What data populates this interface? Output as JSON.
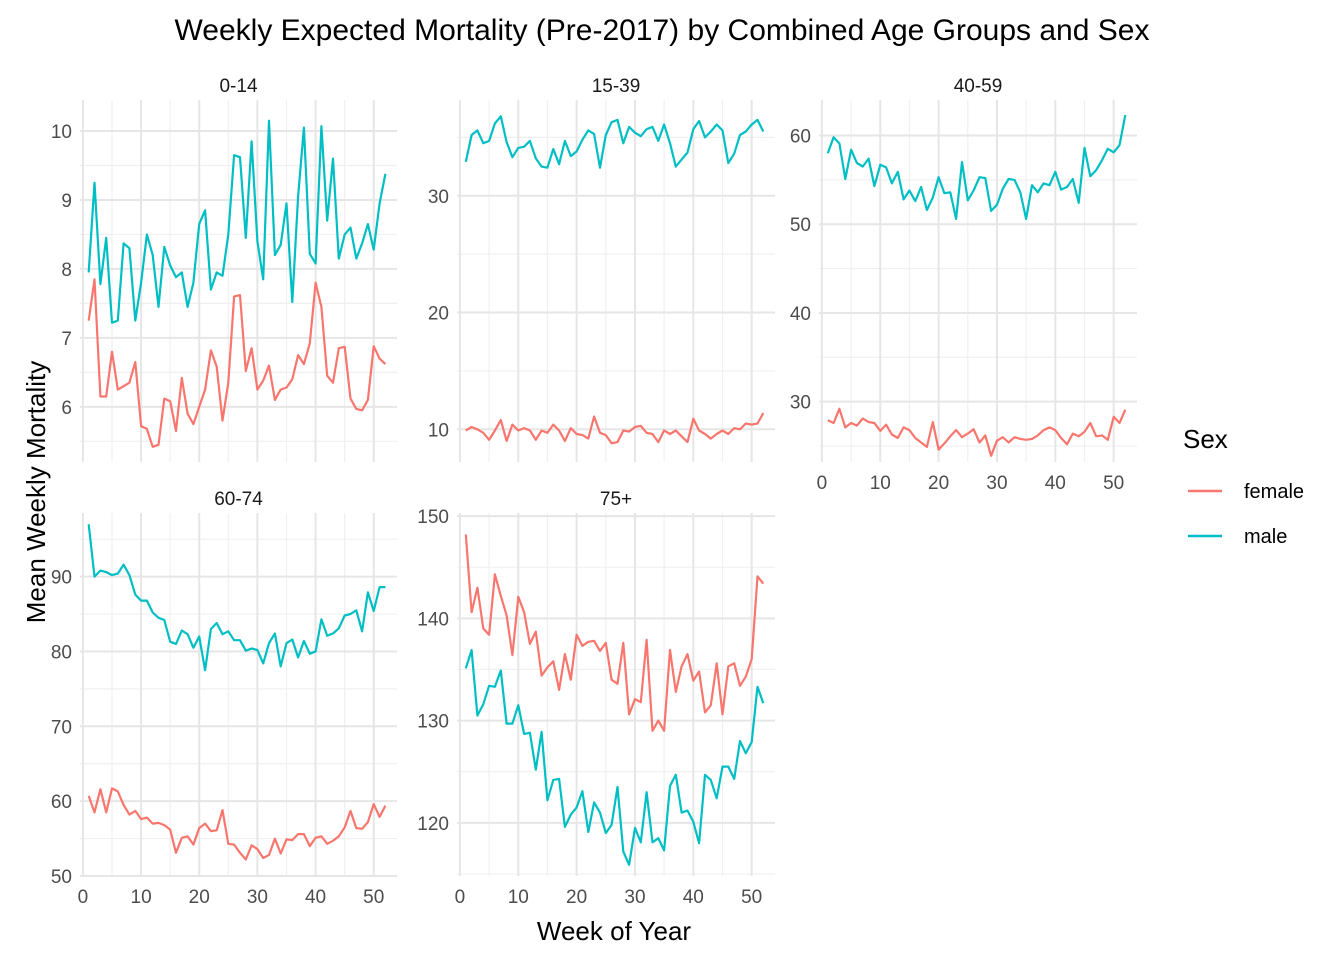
{
  "chart_data": {
    "type": "line",
    "title": "Weekly Expected Mortality (Pre-2017) by Combined Age Groups and Sex",
    "xlabel": "Week of Year",
    "ylabel": "Mean Weekly Mortality",
    "legend": {
      "title": "Sex",
      "position": "right",
      "entries": [
        {
          "name": "female",
          "color": "#F8766D"
        },
        {
          "name": "male",
          "color": "#00BFC4"
        }
      ]
    },
    "x_ticks": [
      0,
      10,
      20,
      30,
      40,
      50
    ],
    "x_ticks_labels": [
      "0",
      "10",
      "20",
      "30",
      "40",
      "50"
    ],
    "xlim": [
      -0.5,
      54
    ],
    "grid": true,
    "panels": [
      {
        "label": "0-14",
        "ylim": [
          5.2,
          10.45
        ],
        "y_ticks": [
          6,
          7,
          8,
          9,
          10
        ],
        "y_ticks_labels": [
          "6",
          "7",
          "8",
          "9",
          "10"
        ],
        "series": [
          {
            "name": "female",
            "values": [
              7.25,
              7.85,
              6.15,
              6.15,
              6.8,
              6.25,
              6.3,
              6.35,
              6.65,
              5.72,
              5.68,
              5.42,
              5.45,
              6.12,
              6.08,
              5.65,
              6.42,
              5.9,
              5.75,
              6.0,
              6.25,
              6.82,
              6.58,
              5.8,
              6.35,
              7.6,
              7.62,
              6.52,
              6.85,
              6.25,
              6.38,
              6.6,
              6.1,
              6.25,
              6.28,
              6.4,
              6.75,
              6.62,
              6.92,
              7.8,
              7.45,
              6.45,
              6.35,
              6.85,
              6.87,
              6.12,
              5.97,
              5.95,
              6.1,
              6.88,
              6.7,
              6.62
            ]
          },
          {
            "name": "male",
            "values": [
              7.95,
              9.25,
              7.78,
              8.45,
              7.22,
              7.25,
              8.37,
              8.3,
              7.25,
              7.8,
              8.5,
              8.2,
              7.45,
              8.32,
              8.05,
              7.88,
              7.95,
              7.45,
              7.8,
              8.65,
              8.85,
              7.7,
              7.95,
              7.9,
              8.5,
              9.65,
              9.62,
              8.45,
              9.85,
              8.4,
              7.85,
              10.15,
              8.2,
              8.35,
              8.95,
              7.52,
              9.05,
              10.05,
              8.22,
              8.08,
              10.07,
              8.7,
              9.6,
              8.15,
              8.5,
              8.6,
              8.15,
              8.37,
              8.65,
              8.28,
              8.95,
              9.38
            ]
          }
        ]
      },
      {
        "label": "15-39",
        "ylim": [
          7.2,
          38.2
        ],
        "y_ticks": [
          10,
          20,
          30
        ],
        "y_ticks_labels": [
          "10",
          "20",
          "30"
        ],
        "series": [
          {
            "name": "female",
            "values": [
              9.9,
              10.2,
              10.0,
              9.7,
              9.1,
              9.9,
              10.8,
              9.0,
              10.4,
              9.9,
              10.1,
              9.9,
              9.1,
              9.9,
              9.7,
              10.4,
              9.9,
              9.0,
              10.1,
              9.6,
              9.5,
              9.2,
              11.1,
              9.7,
              9.5,
              8.8,
              8.9,
              9.9,
              9.8,
              10.2,
              10.3,
              9.7,
              9.6,
              8.9,
              9.9,
              9.6,
              9.9,
              9.4,
              8.9,
              10.9,
              9.9,
              9.6,
              9.2,
              9.6,
              9.9,
              9.6,
              10.1,
              10.0,
              10.5,
              10.4,
              10.5,
              11.4
            ]
          },
          {
            "name": "male",
            "values": [
              32.9,
              35.2,
              35.6,
              34.5,
              34.7,
              36.2,
              36.8,
              34.6,
              33.3,
              34.1,
              34.2,
              34.7,
              33.2,
              32.5,
              32.4,
              34.0,
              32.7,
              34.7,
              33.4,
              33.8,
              34.8,
              35.6,
              35.3,
              32.4,
              35.2,
              36.3,
              36.5,
              34.5,
              35.9,
              35.4,
              35.1,
              35.7,
              35.9,
              34.7,
              36.1,
              34.5,
              32.5,
              33.1,
              33.7,
              35.7,
              36.4,
              35.0,
              35.5,
              36.1,
              35.6,
              32.8,
              33.6,
              35.2,
              35.5,
              36.1,
              36.5,
              35.5
            ]
          }
        ]
      },
      {
        "label": "40-59",
        "ylim": [
          23.2,
          64.0
        ],
        "y_ticks": [
          30,
          40,
          50,
          60
        ],
        "y_ticks_labels": [
          "30",
          "40",
          "50",
          "60"
        ],
        "series": [
          {
            "name": "female",
            "values": [
              27.9,
              27.6,
              29.2,
              27.1,
              27.6,
              27.3,
              28.1,
              27.7,
              27.6,
              26.7,
              27.4,
              26.3,
              25.9,
              27.1,
              26.8,
              25.9,
              25.4,
              24.9,
              27.7,
              24.6,
              25.3,
              26.1,
              26.8,
              26.0,
              26.4,
              26.9,
              25.4,
              26.2,
              23.9,
              25.6,
              26.0,
              25.4,
              26.0,
              25.8,
              25.7,
              25.8,
              26.2,
              26.8,
              27.1,
              26.8,
              25.9,
              25.2,
              26.4,
              26.1,
              26.6,
              27.6,
              26.1,
              26.2,
              25.7,
              28.3,
              27.6,
              29.1
            ]
          },
          {
            "name": "male",
            "values": [
              58.0,
              59.8,
              59.1,
              55.1,
              58.4,
              56.9,
              56.5,
              57.4,
              54.3,
              56.7,
              56.4,
              54.6,
              55.9,
              52.8,
              53.8,
              52.6,
              54.2,
              51.6,
              53.0,
              55.3,
              53.5,
              53.6,
              50.6,
              57.0,
              52.7,
              53.8,
              55.3,
              55.2,
              51.5,
              52.2,
              54.0,
              55.1,
              55.0,
              53.6,
              50.6,
              54.4,
              53.6,
              54.6,
              54.4,
              55.9,
              53.9,
              54.2,
              55.1,
              52.4,
              58.6,
              55.4,
              56.1,
              57.2,
              58.5,
              58.1,
              58.9,
              62.3
            ]
          }
        ]
      },
      {
        "label": "60-74",
        "ylim": [
          50.0,
          98.5
        ],
        "y_ticks": [
          50,
          60,
          70,
          80,
          90
        ],
        "y_ticks_labels": [
          "50",
          "60",
          "70",
          "80",
          "90"
        ],
        "series": [
          {
            "name": "female",
            "values": [
              60.7,
              58.5,
              61.6,
              58.5,
              61.7,
              61.3,
              59.5,
              58.2,
              58.7,
              57.6,
              57.8,
              57.0,
              57.1,
              56.8,
              56.2,
              53.1,
              55.1,
              55.3,
              54.2,
              56.4,
              57.0,
              56.0,
              56.1,
              58.8,
              54.3,
              54.2,
              53.1,
              52.2,
              54.1,
              53.6,
              52.4,
              52.8,
              55.0,
              53.0,
              54.9,
              54.8,
              55.6,
              55.6,
              54.0,
              55.1,
              55.3,
              54.3,
              54.7,
              55.3,
              56.5,
              58.7,
              56.4,
              56.3,
              57.2,
              59.6,
              57.9,
              59.4
            ]
          },
          {
            "name": "male",
            "values": [
              97.0,
              90.0,
              90.8,
              90.6,
              90.2,
              90.4,
              91.6,
              90.2,
              87.6,
              86.8,
              86.8,
              85.2,
              84.5,
              84.2,
              81.3,
              81.0,
              82.8,
              82.3,
              80.5,
              82.0,
              77.5,
              83.0,
              83.8,
              82.3,
              82.7,
              81.5,
              81.5,
              80.1,
              80.4,
              80.2,
              78.4,
              81.1,
              82.4,
              78.0,
              81.1,
              81.6,
              79.2,
              81.4,
              79.7,
              80.0,
              84.3,
              82.1,
              82.4,
              83.1,
              84.8,
              85.0,
              85.5,
              82.7,
              87.9,
              85.4,
              88.6,
              88.6
            ]
          }
        ]
      },
      {
        "label": "75+",
        "ylim": [
          114.8,
          150.3
        ],
        "y_ticks": [
          120,
          130,
          140,
          150
        ],
        "y_ticks_labels": [
          "120",
          "130",
          "140",
          "150"
        ],
        "series": [
          {
            "name": "female",
            "values": [
              148.2,
              140.6,
              143.0,
              139.0,
              138.4,
              144.3,
              142.2,
              140.3,
              136.4,
              142.1,
              140.6,
              137.5,
              138.7,
              134.4,
              135.2,
              135.8,
              133.0,
              136.5,
              134.0,
              138.4,
              137.3,
              137.7,
              137.8,
              136.8,
              137.6,
              134.0,
              133.6,
              137.6,
              130.6,
              132.1,
              131.8,
              137.9,
              129.0,
              130.0,
              129.0,
              136.9,
              132.8,
              135.3,
              136.5,
              133.9,
              134.8,
              130.8,
              131.5,
              135.6,
              130.6,
              135.3,
              135.6,
              133.4,
              134.3,
              136.0,
              144.1,
              143.4
            ]
          },
          {
            "name": "male",
            "values": [
              135.1,
              136.9,
              130.5,
              131.6,
              133.4,
              133.3,
              134.9,
              129.7,
              129.7,
              131.5,
              128.7,
              128.8,
              125.2,
              128.9,
              122.2,
              124.2,
              124.3,
              119.6,
              120.8,
              121.5,
              123.1,
              119.1,
              122.0,
              121.0,
              119.0,
              119.8,
              123.5,
              117.2,
              115.9,
              119.5,
              118.1,
              123.0,
              118.1,
              118.5,
              117.3,
              123.6,
              124.7,
              121.0,
              121.2,
              120.1,
              118.0,
              124.7,
              124.2,
              122.4,
              125.5,
              125.5,
              124.3,
              128.0,
              126.8,
              127.9,
              133.3,
              131.7
            ]
          }
        ]
      }
    ]
  }
}
